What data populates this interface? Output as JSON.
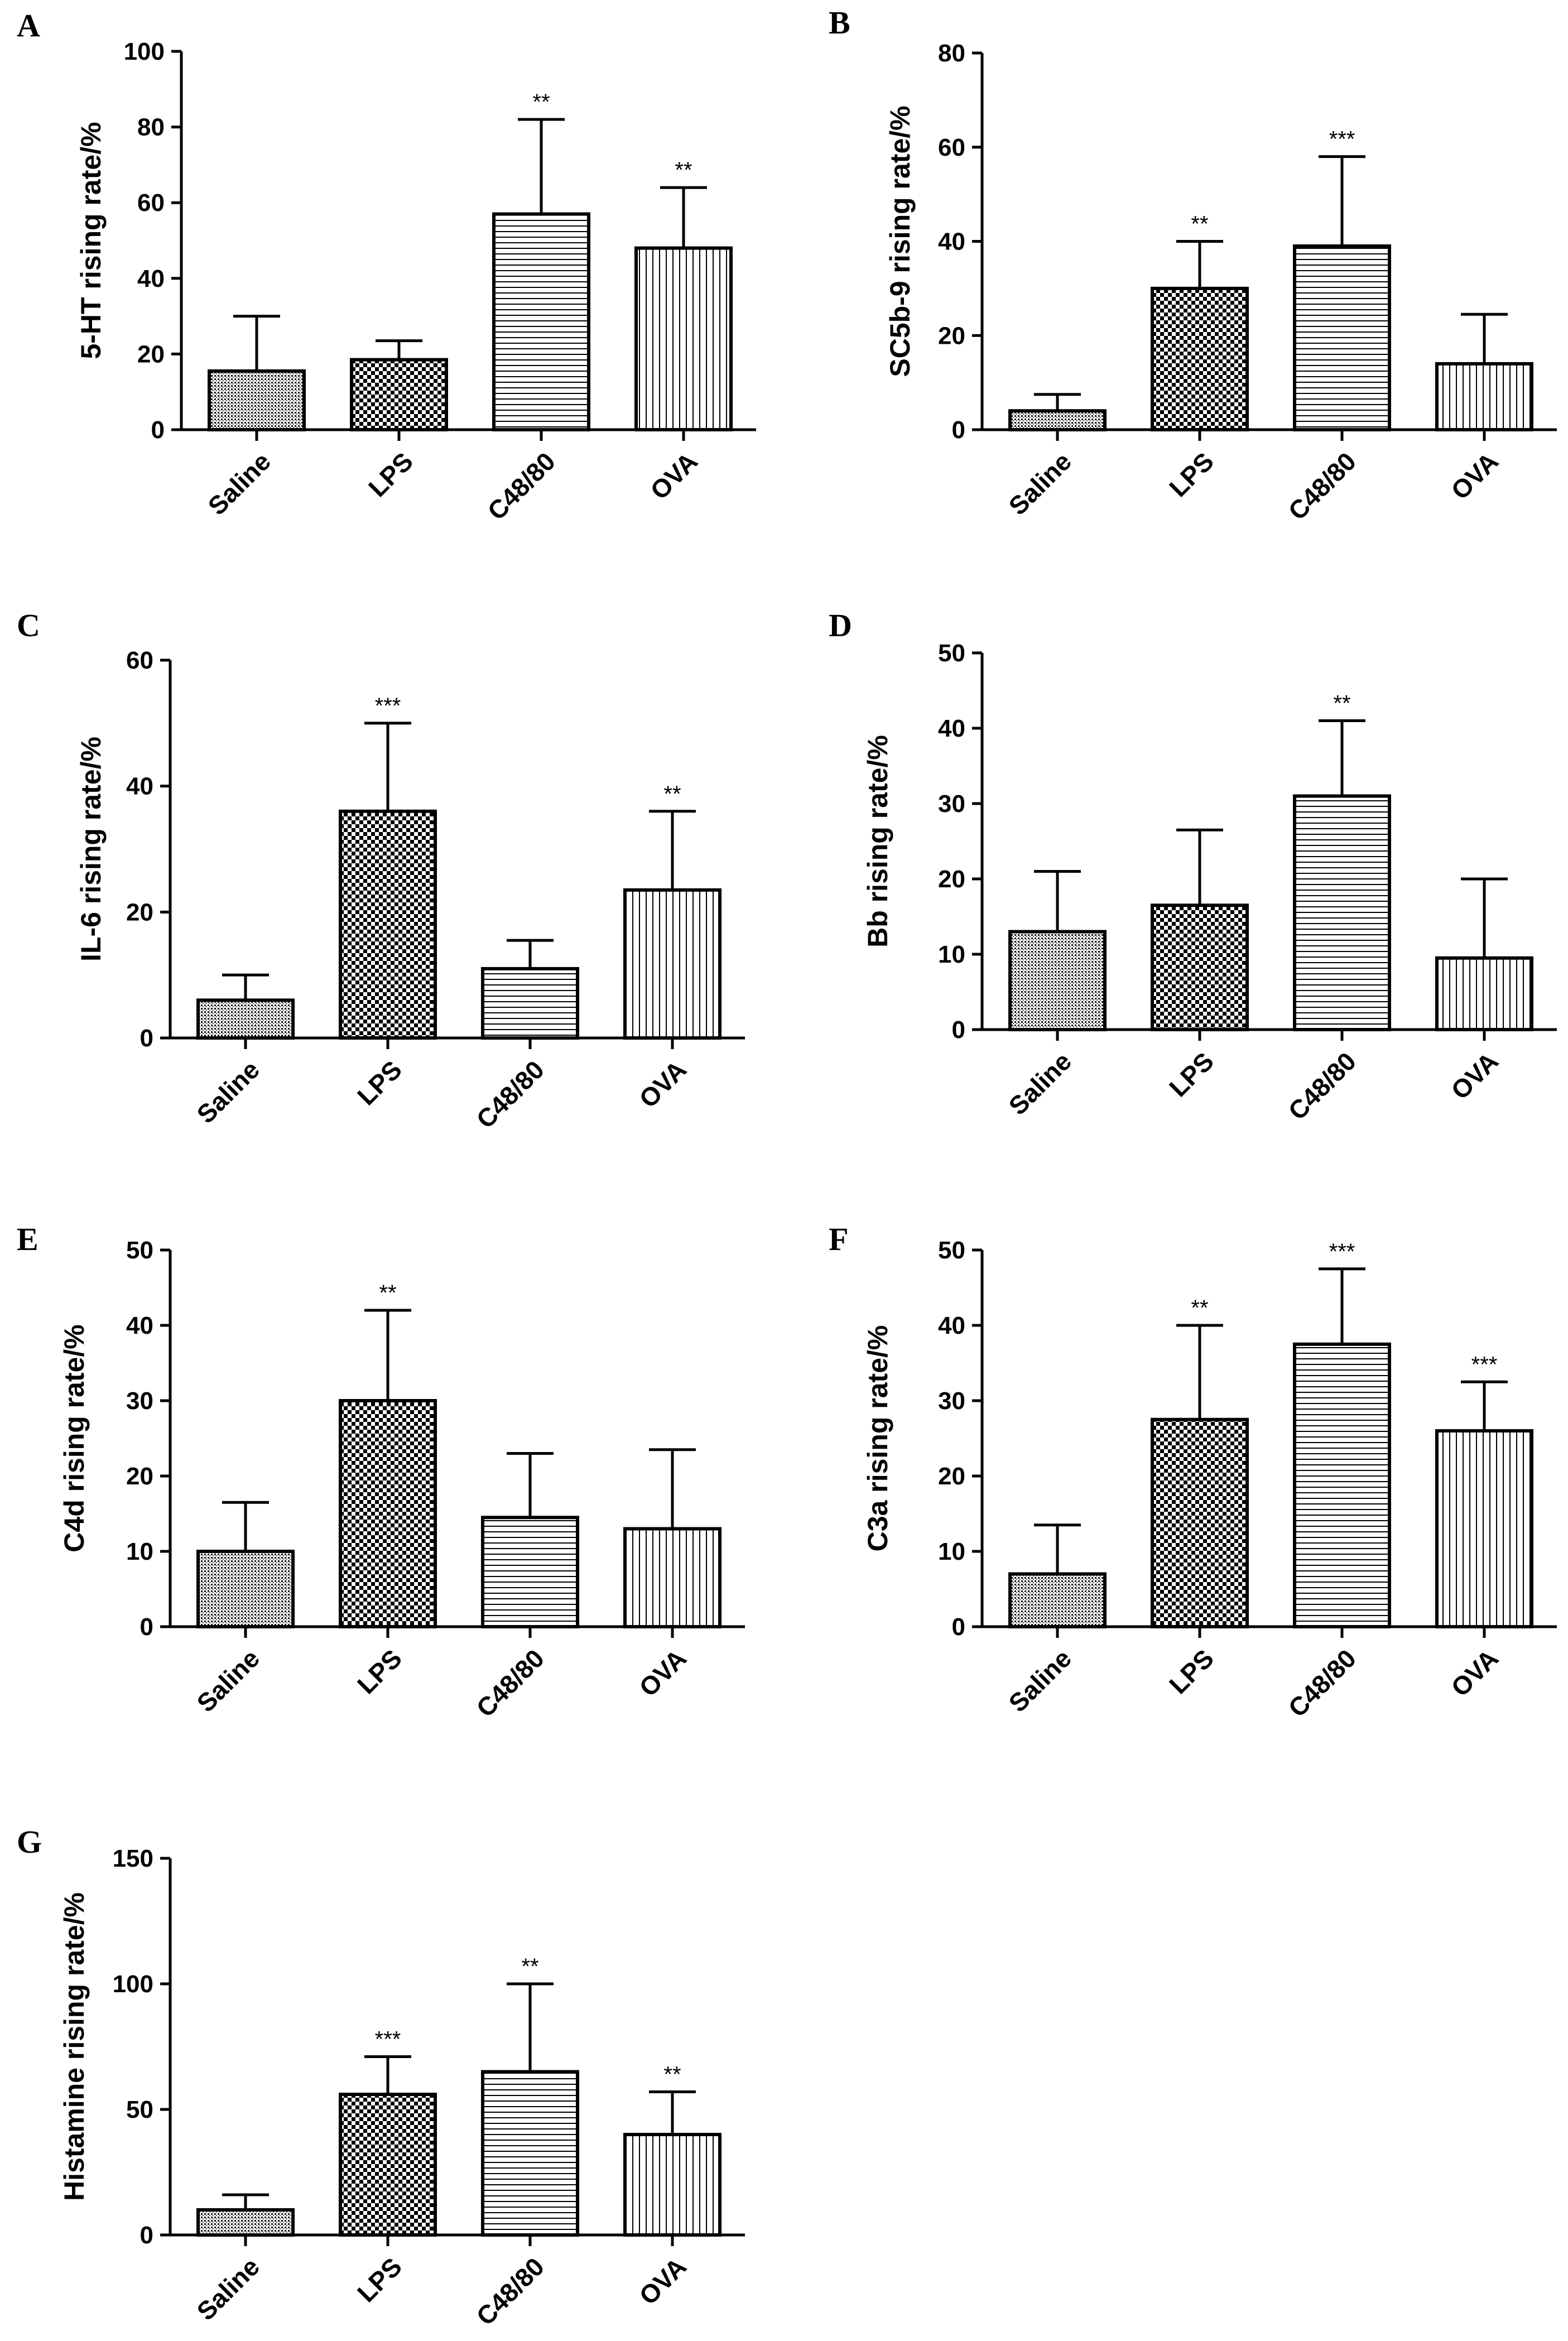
{
  "categories": [
    "Saline",
    "LPS",
    "C48/80",
    "OVA"
  ],
  "chart_data": [
    {
      "type": "bar",
      "panel": "A",
      "ylabel": "5-HT rising rate/%",
      "ylim": [
        0,
        100
      ],
      "yticks": [
        0,
        20,
        40,
        60,
        80,
        100
      ],
      "categories": [
        "Saline",
        "LPS",
        "C48/80",
        "OVA"
      ],
      "values": [
        15.5,
        18.5,
        57,
        48
      ],
      "errors": [
        14.5,
        5,
        25,
        16
      ],
      "significance": [
        "",
        "",
        "**",
        "**"
      ]
    },
    {
      "type": "bar",
      "panel": "B",
      "ylabel": "SC5b-9 rising rate/%",
      "ylim": [
        0,
        80
      ],
      "yticks": [
        0,
        20,
        40,
        60,
        80
      ],
      "categories": [
        "Saline",
        "LPS",
        "C48/80",
        "OVA"
      ],
      "values": [
        4,
        30,
        39,
        14
      ],
      "errors": [
        3.5,
        10,
        19,
        10.5
      ],
      "significance": [
        "",
        "**",
        "***",
        ""
      ]
    },
    {
      "type": "bar",
      "panel": "C",
      "ylabel": "IL-6 rising rate/%",
      "ylim": [
        0,
        60
      ],
      "yticks": [
        0,
        20,
        40,
        60
      ],
      "categories": [
        "Saline",
        "LPS",
        "C48/80",
        "OVA"
      ],
      "values": [
        6,
        36,
        11,
        23.5
      ],
      "errors": [
        4,
        14,
        4.5,
        12.5
      ],
      "significance": [
        "",
        "***",
        "",
        "**"
      ]
    },
    {
      "type": "bar",
      "panel": "D",
      "ylabel": "Bb rising rate/%",
      "ylim": [
        0,
        50
      ],
      "yticks": [
        0,
        10,
        20,
        30,
        40,
        50
      ],
      "categories": [
        "Saline",
        "LPS",
        "C48/80",
        "OVA"
      ],
      "values": [
        13,
        16.5,
        31,
        9.5
      ],
      "errors": [
        8,
        10,
        10,
        10.5
      ],
      "significance": [
        "",
        "",
        "**",
        ""
      ]
    },
    {
      "type": "bar",
      "panel": "E",
      "ylabel": "C4d rising rate/%",
      "ylim": [
        0,
        50
      ],
      "yticks": [
        0,
        10,
        20,
        30,
        40,
        50
      ],
      "categories": [
        "Saline",
        "LPS",
        "C48/80",
        "OVA"
      ],
      "values": [
        10,
        30,
        14.5,
        13
      ],
      "errors": [
        6.5,
        12,
        8.5,
        10.5
      ],
      "significance": [
        "",
        "**",
        "",
        ""
      ]
    },
    {
      "type": "bar",
      "panel": "F",
      "ylabel": "C3a rising rate/%",
      "ylim": [
        0,
        50
      ],
      "yticks": [
        0,
        10,
        20,
        30,
        40,
        50
      ],
      "categories": [
        "Saline",
        "LPS",
        "C48/80",
        "OVA"
      ],
      "values": [
        7,
        27.5,
        37.5,
        26
      ],
      "errors": [
        6.5,
        12.5,
        10,
        6.5
      ],
      "significance": [
        "",
        "**",
        "***",
        "***"
      ]
    },
    {
      "type": "bar",
      "panel": "G",
      "ylabel": "Histamine rising rate/%",
      "ylim": [
        0,
        150
      ],
      "yticks": [
        0,
        50,
        100,
        150
      ],
      "categories": [
        "Saline",
        "LPS",
        "C48/80",
        "OVA"
      ],
      "values": [
        10,
        56,
        65,
        40
      ],
      "errors": [
        6,
        15,
        35,
        17
      ],
      "significance": [
        "",
        "***",
        "**",
        "**"
      ]
    }
  ]
}
